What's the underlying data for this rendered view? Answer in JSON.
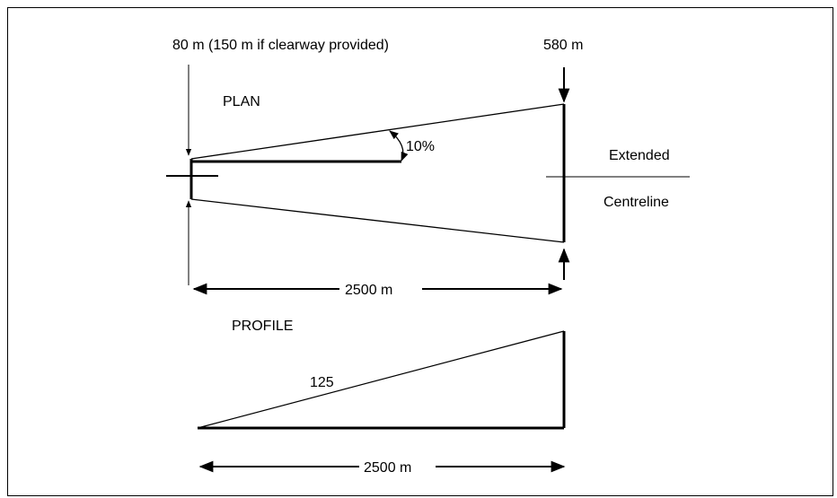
{
  "plan": {
    "title": "PLAN",
    "inner_width_label": "80 m (150 m if clearway provided)",
    "outer_width_label": "580 m",
    "divergence_label": "10%",
    "centreline_label_1": "Extended",
    "centreline_label_2": "Centreline",
    "length_label": "2500 m"
  },
  "profile": {
    "title": "PROFILE",
    "slope_label": "125",
    "length_label": "2500 m"
  }
}
